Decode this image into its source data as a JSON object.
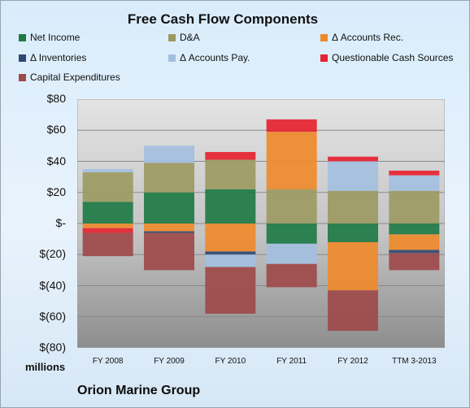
{
  "chart_data": {
    "type": "bar",
    "stacked": true,
    "title": "Free Cash Flow Components",
    "ylabel": "millions",
    "ylim": [
      -80,
      80
    ],
    "ytick_step": 20,
    "yticks": [
      "$80",
      "$60",
      "$40",
      "$20",
      "$-",
      "$(20)",
      "$(40)",
      "$(60)",
      "$(80)"
    ],
    "categories": [
      "FY 2008",
      "FY 2009",
      "FY 2010",
      "FY 2011",
      "FY 2012",
      "TTM 3-2013"
    ],
    "series": [
      {
        "name": "Net Income",
        "color": "#1f7a45",
        "values": [
          14,
          20,
          22,
          -13,
          -12,
          -7
        ]
      },
      {
        "name": "D&A",
        "color": "#9c9a63",
        "values": [
          19,
          19,
          19,
          22,
          21,
          21
        ]
      },
      {
        "name": "Δ Accounts Rec.",
        "color": "#ee8a2c",
        "values": [
          -3,
          -5,
          -18,
          37,
          -31,
          -10
        ]
      },
      {
        "name": "Δ Inventories",
        "color": "#2e4a73",
        "values": [
          0,
          -1,
          -2,
          0,
          0,
          -2
        ]
      },
      {
        "name": "Δ Accounts Pay.",
        "color": "#a3bfe0",
        "values": [
          2,
          11,
          -8,
          -13,
          19,
          10
        ]
      },
      {
        "name": "Questionable Cash Sources",
        "color": "#e62330",
        "values": [
          -3,
          0,
          5,
          8,
          3,
          3
        ]
      },
      {
        "name": "Capital Expenditures",
        "color": "#9e4a4a",
        "values": [
          -15,
          -24,
          -30,
          -15,
          -26,
          -11
        ]
      }
    ],
    "legend_position": "top",
    "grid": true
  },
  "footer": {
    "company": "Orion Marine Group"
  }
}
